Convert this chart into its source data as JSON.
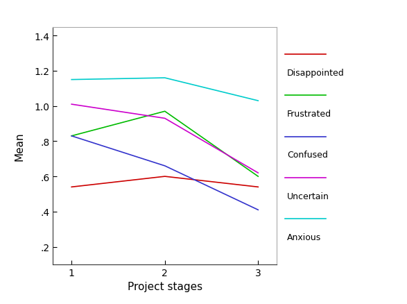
{
  "series": [
    {
      "label": "Disappointed",
      "color": "#cc0000",
      "values": [
        0.54,
        0.6,
        0.54
      ]
    },
    {
      "label": "Frustrated",
      "color": "#00bb00",
      "values": [
        0.83,
        0.97,
        0.6
      ]
    },
    {
      "label": "Confused",
      "color": "#3333cc",
      "values": [
        0.83,
        0.66,
        0.41
      ]
    },
    {
      "label": "Uncertain",
      "color": "#cc00cc",
      "values": [
        1.01,
        0.93,
        0.62
      ]
    },
    {
      "label": "Anxious",
      "color": "#00cccc",
      "values": [
        1.15,
        1.16,
        1.03
      ]
    }
  ],
  "x_values": [
    1,
    2,
    3
  ],
  "xlabel": "Project stages",
  "ylabel": "Mean",
  "ylim": [
    0.1,
    1.45
  ],
  "xlim": [
    0.8,
    3.2
  ],
  "yticks": [
    0.2,
    0.4,
    0.6,
    0.8,
    1.0,
    1.2,
    1.4
  ],
  "xticks": [
    1,
    2,
    3
  ],
  "ytick_labels": [
    ".2",
    ".4",
    ".6",
    ".8",
    "1.0",
    "1.2",
    "1.4"
  ],
  "xtick_labels": [
    "1",
    "2",
    "3"
  ],
  "legend_fontsize": 9,
  "axis_fontsize": 11,
  "tick_fontsize": 10,
  "linewidth": 1.2
}
